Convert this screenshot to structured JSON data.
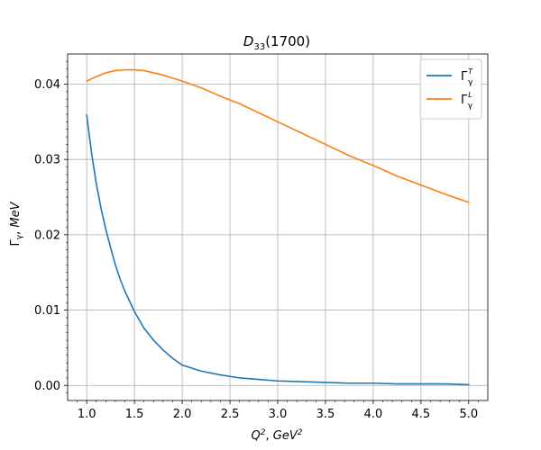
{
  "chart_data": {
    "type": "line",
    "title": "D33(1700)",
    "title_main": "D",
    "title_sub": "33",
    "title_suffix": "(1700)",
    "xlabel": "Q², GeV²",
    "ylabel": "Γγ, MeV",
    "xlim": [
      0.8,
      5.2
    ],
    "ylim": [
      -0.002,
      0.044
    ],
    "xticks": [
      1.0,
      1.5,
      2.0,
      2.5,
      3.0,
      3.5,
      4.0,
      4.5,
      5.0
    ],
    "xtick_labels": [
      "1.0",
      "1.5",
      "2.0",
      "2.5",
      "3.0",
      "3.5",
      "4.0",
      "4.5",
      "5.0"
    ],
    "yticks": [
      0.0,
      0.01,
      0.02,
      0.03,
      0.04
    ],
    "ytick_labels": [
      "0.00",
      "0.01",
      "0.02",
      "0.03",
      "0.04"
    ],
    "grid": true,
    "legend_position": "top-right",
    "series": [
      {
        "name": "ΓγT",
        "legend_main": "Γ",
        "legend_sub": "γ",
        "legend_sup": "T",
        "color": "#1f77b4",
        "x": [
          1.0,
          1.05,
          1.1,
          1.15,
          1.2,
          1.25,
          1.3,
          1.35,
          1.4,
          1.5,
          1.6,
          1.7,
          1.8,
          1.9,
          2.0,
          2.2,
          2.4,
          2.6,
          2.8,
          3.0,
          3.25,
          3.5,
          3.75,
          4.0,
          4.25,
          4.5,
          4.75,
          5.0
        ],
        "y": [
          0.0359,
          0.0309,
          0.0268,
          0.0235,
          0.0207,
          0.0183,
          0.016,
          0.0141,
          0.0125,
          0.0098,
          0.0076,
          0.006,
          0.0047,
          0.0036,
          0.0027,
          0.0019,
          0.0014,
          0.001,
          0.0008,
          0.0006,
          0.0005,
          0.0004,
          0.0003,
          0.0003,
          0.0002,
          0.0002,
          0.0002,
          0.0001
        ]
      },
      {
        "name": "ΓγL",
        "legend_main": "Γ",
        "legend_sub": "γ",
        "legend_sup": "L",
        "color": "#ff7f0e",
        "x": [
          1.0,
          1.1,
          1.2,
          1.3,
          1.4,
          1.5,
          1.6,
          1.7,
          1.8,
          1.9,
          2.0,
          2.2,
          2.4,
          2.6,
          2.8,
          3.0,
          3.25,
          3.5,
          3.75,
          4.0,
          4.25,
          4.5,
          4.75,
          5.0
        ],
        "y": [
          0.0404,
          0.041,
          0.0415,
          0.0418,
          0.0419,
          0.0419,
          0.0418,
          0.0415,
          0.0412,
          0.0408,
          0.0404,
          0.0395,
          0.0384,
          0.0374,
          0.0362,
          0.035,
          0.0335,
          0.032,
          0.0305,
          0.0292,
          0.0278,
          0.0266,
          0.0254,
          0.0243
        ]
      }
    ]
  }
}
